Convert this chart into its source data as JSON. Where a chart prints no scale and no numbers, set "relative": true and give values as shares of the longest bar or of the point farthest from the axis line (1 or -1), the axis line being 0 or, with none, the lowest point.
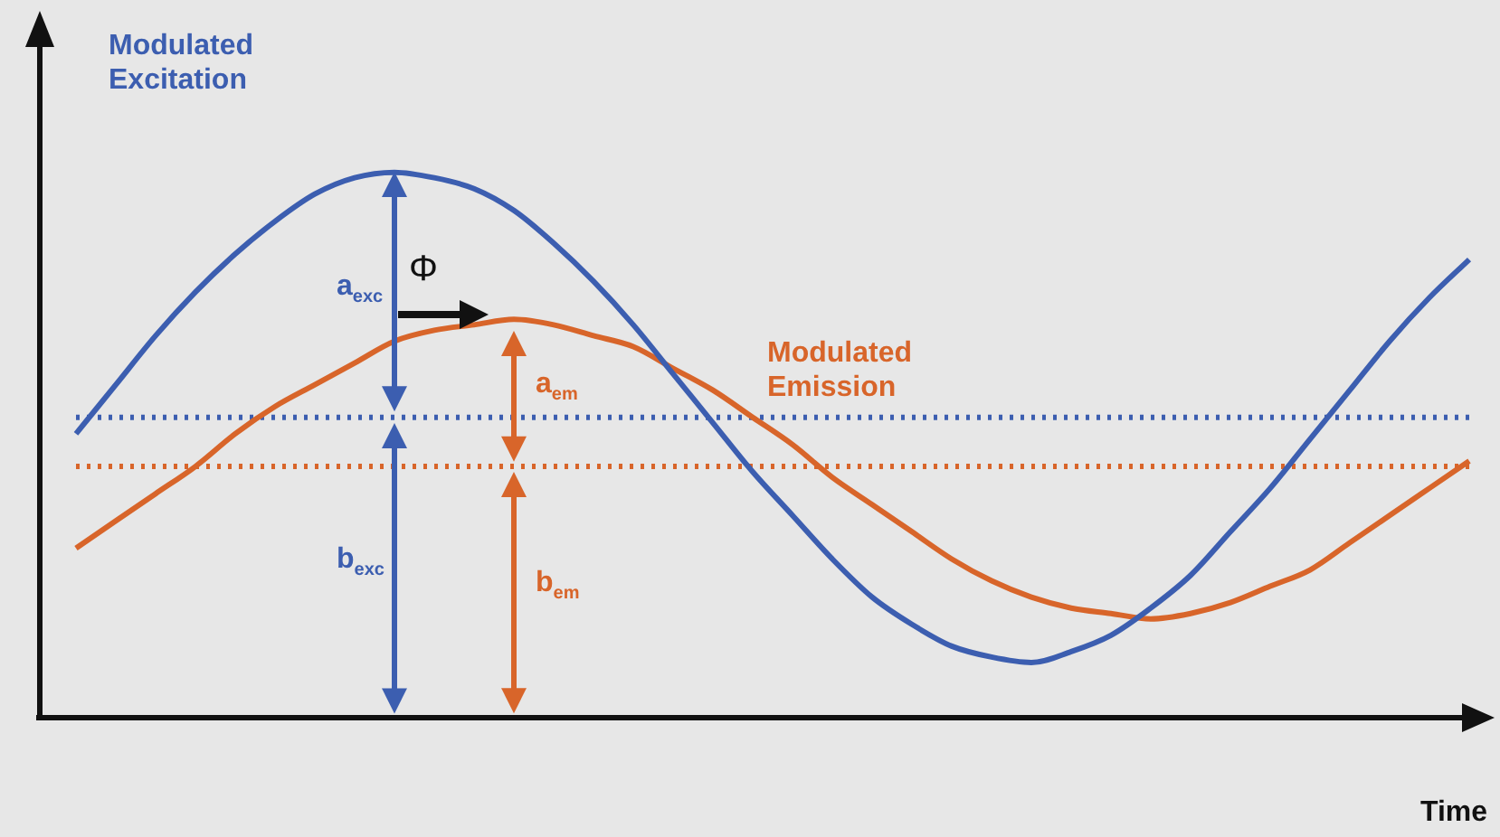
{
  "chart_data": {
    "type": "line",
    "relative": true,
    "xlabel": "Time",
    "categories": [
      null,
      null,
      null,
      null,
      null,
      null,
      null,
      null,
      null,
      null,
      null,
      null,
      null,
      null,
      null,
      null,
      null,
      null,
      null,
      null,
      null,
      null,
      null,
      null,
      null,
      null,
      null,
      null,
      null,
      null,
      null,
      null,
      null,
      null,
      null,
      null
    ],
    "series": [
      {
        "name": "Modulated Excitation",
        "color": "#3c5eb0",
        "values": [
          0.52,
          0.61,
          0.7,
          0.78,
          0.85,
          0.91,
          0.96,
          0.99,
          1.0,
          0.99,
          0.97,
          0.93,
          0.87,
          0.8,
          0.72,
          0.63,
          0.54,
          0.45,
          0.37,
          0.29,
          0.22,
          0.17,
          0.13,
          0.11,
          0.1,
          0.12,
          0.15,
          0.2,
          0.26,
          0.34,
          0.42,
          0.51,
          0.6,
          0.69,
          0.77,
          0.84
        ]
      },
      {
        "name": "Modulated Emission",
        "color": "#d8652a",
        "values": [
          0.31,
          0.36,
          0.41,
          0.46,
          0.52,
          0.57,
          0.61,
          0.65,
          0.69,
          0.71,
          0.72,
          0.73,
          0.72,
          0.7,
          0.68,
          0.64,
          0.6,
          0.55,
          0.5,
          0.44,
          0.39,
          0.34,
          0.29,
          0.25,
          0.22,
          0.2,
          0.19,
          0.18,
          0.19,
          0.21,
          0.24,
          0.27,
          0.32,
          0.37,
          0.42,
          0.47
        ]
      }
    ],
    "ref_lines": [
      {
        "axis": "y",
        "value": 0.55,
        "color": "#3c5eb0",
        "line_style": "dotted"
      },
      {
        "axis": "y",
        "value": 0.46,
        "color": "#d8652a",
        "line_style": "dotted"
      }
    ],
    "annotations": [
      "Φ",
      "a$_{exc}$",
      "b$_{exc}$",
      "a$_{em}$",
      "b$_{em}$"
    ],
    "legend": false,
    "marker": "none",
    "line_style": "solid"
  }
}
